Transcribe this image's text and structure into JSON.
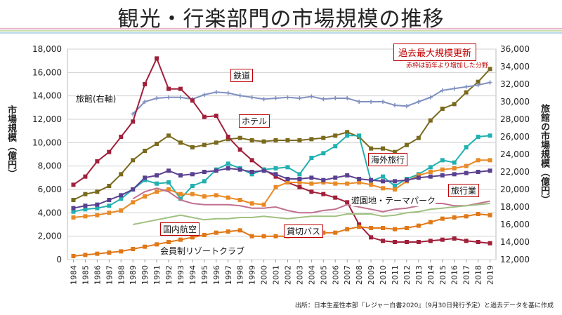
{
  "title": "観光・行楽部門の市場規模の推移",
  "left_axis_label": "市場規模（億円）",
  "right_axis_label": "旅館の市場規模（億円）",
  "legend": {
    "box": "過去最大規模更新",
    "note": "赤枠は前年より増加した分野"
  },
  "source": "出所：日本生産性本部『レジャー白書2020』（9月30日発行予定）と過去データを基に作成",
  "colors": {
    "stripe": [
      "#e8b4c8",
      "#f4d6a8",
      "#c8e0b0",
      "#b8d8e8",
      "#d0c0e8"
    ]
  },
  "chart_data": {
    "type": "line",
    "x": [
      "1984",
      "1985",
      "1986",
      "1987",
      "1988",
      "1989",
      "1990",
      "1991",
      "1992",
      "1993",
      "1994",
      "1995",
      "1996",
      "1997",
      "1998",
      "1999",
      "2000",
      "2001",
      "2002",
      "2003",
      "2004",
      "2005",
      "2006",
      "2007",
      "2008",
      "2009",
      "2010",
      "2011",
      "2012",
      "2013",
      "2014",
      "2015",
      "2016",
      "2017",
      "2018",
      "2019"
    ],
    "xlabel": "",
    "ylim_left": [
      0,
      18000
    ],
    "yticks_left": [
      0,
      2000,
      4000,
      6000,
      8000,
      10000,
      12000,
      14000,
      16000,
      18000
    ],
    "ylim_right": [
      12000,
      36000
    ],
    "yticks_right": [
      12000,
      14000,
      16000,
      18000,
      20000,
      22000,
      24000,
      26000,
      28000,
      30000,
      32000,
      34000,
      36000
    ],
    "grid": true,
    "series": [
      {
        "name": "鉄道",
        "color": "#7a6a1e",
        "axis": "left",
        "boxed": true,
        "values": [
          5100,
          5600,
          5800,
          6300,
          7300,
          8500,
          9300,
          9900,
          10600,
          10000,
          9600,
          9800,
          10000,
          10300,
          10400,
          10200,
          10100,
          10200,
          10200,
          10200,
          10300,
          10400,
          10600,
          10900,
          10500,
          9500,
          9500,
          9200,
          9800,
          10400,
          11900,
          12900,
          13300,
          14300,
          15200,
          16300
        ]
      },
      {
        "name": "旅館(右軸)",
        "color": "#8090c0",
        "axis": "right",
        "boxed": false,
        "values": [
          null,
          null,
          null,
          null,
          null,
          28600,
          30000,
          30400,
          30500,
          30500,
          30300,
          30800,
          31100,
          31000,
          30700,
          30500,
          30300,
          30400,
          30500,
          30400,
          30600,
          30300,
          30400,
          30400,
          30000,
          30000,
          30000,
          29600,
          29500,
          30000,
          30500,
          31300,
          31500,
          31700,
          31900,
          32200
        ]
      },
      {
        "name": "ホテル",
        "color": "#a0203a",
        "axis": "left",
        "boxed": true,
        "values": [
          6400,
          7100,
          8400,
          9200,
          10500,
          11800,
          15000,
          17200,
          14600,
          14600,
          13600,
          12200,
          12300,
          10500,
          9400,
          8500,
          7700,
          7100,
          6600,
          6200,
          5800,
          5600,
          5300,
          4900,
          3000,
          1900,
          1600,
          1500,
          1500,
          1500,
          1600,
          1700,
          1800,
          1600,
          1500,
          1400
        ]
      },
      {
        "name": "海外旅行",
        "color": "#22b0b0",
        "axis": "left",
        "boxed": true,
        "values": [
          4100,
          4300,
          4400,
          4600,
          5200,
          6000,
          6800,
          6500,
          6600,
          5200,
          6300,
          6700,
          7700,
          8200,
          7800,
          7300,
          7700,
          7800,
          7900,
          7300,
          8700,
          9100,
          9700,
          10600,
          10600,
          6700,
          7100,
          6300,
          6900,
          7300,
          7900,
          8500,
          8300,
          9600,
          10500,
          10600
        ]
      },
      {
        "name": "旅行業",
        "color": "#e88a26",
        "axis": "left",
        "boxed": true,
        "values": [
          3600,
          3700,
          3800,
          4000,
          4200,
          4900,
          5400,
          5800,
          6000,
          5600,
          5600,
          5400,
          5500,
          5300,
          5100,
          4800,
          4700,
          6200,
          6600,
          6600,
          6500,
          6600,
          6500,
          6500,
          6600,
          6400,
          6100,
          6000,
          6700,
          7200,
          7500,
          7700,
          7800,
          8000,
          8500,
          8500
        ]
      },
      {
        "name": "遊園地・テーマパーク",
        "color": "#5a4090",
        "axis": "left",
        "boxed": false,
        "values": [
          4400,
          4600,
          4700,
          5100,
          5500,
          6000,
          7000,
          7200,
          7600,
          7200,
          7300,
          7500,
          7600,
          7800,
          7700,
          7500,
          7600,
          7300,
          6900,
          6900,
          7000,
          6800,
          7000,
          7200,
          6900,
          6800,
          6700,
          6700,
          6800,
          7000,
          7100,
          7200,
          7300,
          7400,
          7500,
          7600
        ]
      },
      {
        "name": "国内航空",
        "color": "#c07090",
        "axis": "left",
        "boxed": true,
        "values": [
          null,
          null,
          null,
          null,
          null,
          5200,
          5800,
          6100,
          5800,
          5100,
          4800,
          4700,
          4700,
          4700,
          4600,
          4400,
          4400,
          4500,
          4200,
          4000,
          4000,
          4200,
          4300,
          4700,
          4500,
          4300,
          4100,
          4300,
          4400,
          4600,
          4800,
          4800,
          4600,
          4600,
          4800,
          5000
        ]
      },
      {
        "name": "貸切バス",
        "color": "#a0c080",
        "axis": "left",
        "boxed": true,
        "values": [
          null,
          null,
          null,
          null,
          null,
          3000,
          3200,
          3400,
          3600,
          3800,
          3600,
          3400,
          3500,
          3500,
          3600,
          3600,
          3700,
          3600,
          3500,
          3600,
          3700,
          3700,
          3700,
          3900,
          3900,
          3900,
          3700,
          3800,
          4000,
          4100,
          4300,
          4400,
          4500,
          4600,
          4700,
          4800
        ]
      },
      {
        "name": "会員制リゾートクラブ",
        "color": "#e07818",
        "axis": "left",
        "boxed": false,
        "values": [
          300,
          400,
          500,
          600,
          700,
          900,
          1100,
          1300,
          1500,
          1700,
          1900,
          2100,
          2300,
          2400,
          2500,
          2000,
          2000,
          2000,
          2000,
          2100,
          2200,
          2300,
          2300,
          2600,
          2800,
          2700,
          2700,
          2600,
          2700,
          2900,
          3200,
          3500,
          3600,
          3700,
          3900,
          3800
        ]
      }
    ]
  }
}
